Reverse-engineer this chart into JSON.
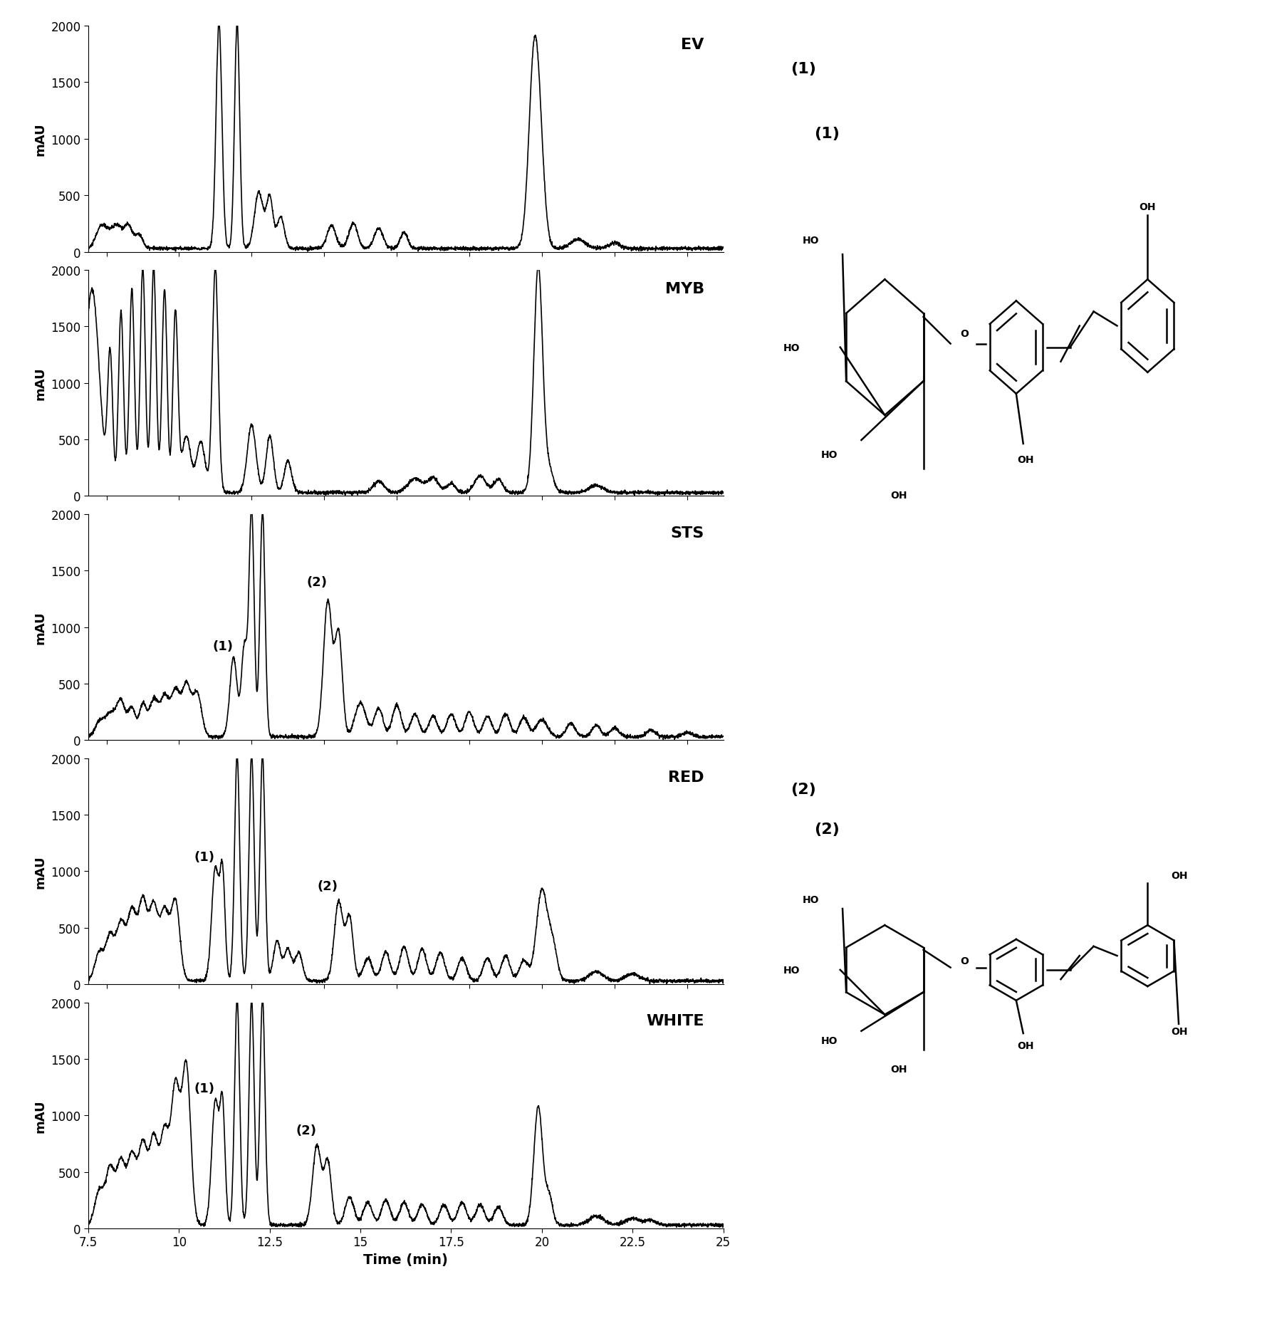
{
  "panels": [
    "EV",
    "MYB",
    "STS",
    "RED",
    "WHITE"
  ],
  "xlim": [
    7.5,
    25
  ],
  "ylim": [
    0,
    2000
  ],
  "yticks": [
    0,
    500,
    1000,
    1500,
    2000
  ],
  "xticks": [
    7.5,
    10,
    12.5,
    15,
    17.5,
    20,
    22.5,
    25
  ],
  "xlabel": "Time (min)",
  "ylabel": "mAU",
  "line_color": "#000000",
  "line_width": 1.2,
  "background_color": "#ffffff",
  "label1_text": "(1)",
  "label2_text": "(2)"
}
